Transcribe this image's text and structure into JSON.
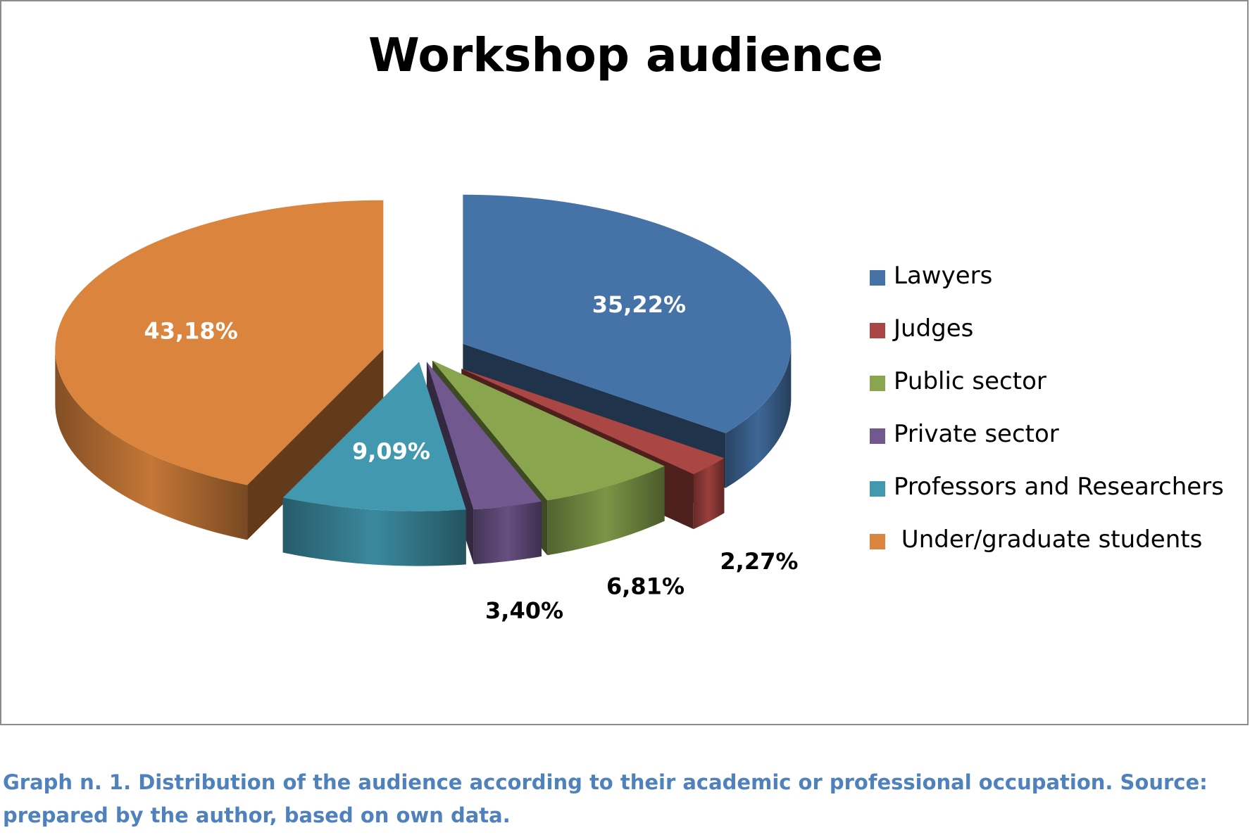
{
  "chart_data": {
    "type": "pie",
    "title": "Workshop audience",
    "categories": [
      "Lawyers",
      "Judges",
      "Public sector",
      "Private sector",
      "Professors and Researchers",
      "Under/graduate students"
    ],
    "values": [
      35.22,
      2.27,
      6.81,
      3.4,
      9.09,
      43.18
    ],
    "value_labels": [
      "35,22%",
      "2,27%",
      "6,81%",
      "3,40%",
      "9,09%",
      "43,18%"
    ],
    "colors": [
      "#4572a7",
      "#aa4643",
      "#89a54e",
      "#71588f",
      "#4198af",
      "#db843d"
    ],
    "legend_position": "right",
    "style": "3d-exploded"
  },
  "legend_labels": [
    "Lawyers",
    "Judges",
    "Public sector",
    "Private sector",
    "Professors and Researchers",
    " Under/graduate students"
  ],
  "caption": "Graph n. 1. Distribution of the audience according to their academic or professional occupation. Source: prepared by the author, based on own data."
}
